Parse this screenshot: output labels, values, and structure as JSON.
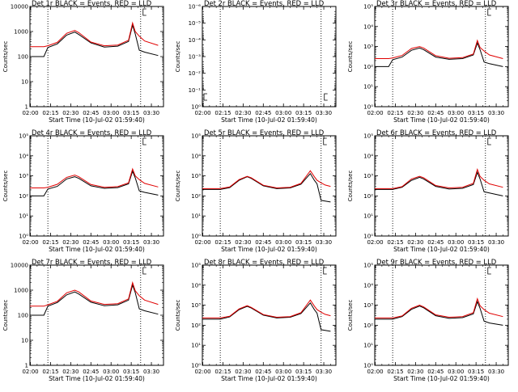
{
  "chart_data": [
    {
      "type": "line",
      "title": "Det 1r BLACK = Events, RED = LLD",
      "xlabel": "Start Time (10-Jul-02 01:59:40)",
      "ylabel": "Counts/sec",
      "x_ticks": [
        "02:00",
        "02:15",
        "02:30",
        "02:45",
        "03:00",
        "03:15",
        "03:30"
      ],
      "y_scale": "log",
      "ylim": [
        1,
        10000
      ],
      "y_ticks": [
        {
          "v": 1,
          "label": "1"
        },
        {
          "v": 10,
          "label": "10"
        },
        {
          "v": 100,
          "label": "100"
        },
        {
          "v": 1000,
          "label": "1000"
        },
        {
          "v": 10000,
          "label": "10000"
        }
      ],
      "vlines": [
        "02:13",
        "03:22"
      ],
      "series": [
        {
          "color": "#000000",
          "x": [
            "01:59",
            "02:10",
            "02:13",
            "02:20",
            "02:27",
            "02:33",
            "02:36",
            "02:45",
            "02:55",
            "03:05",
            "03:13",
            "03:16",
            "03:18",
            "03:21",
            "03:25",
            "03:35"
          ],
          "values": [
            100,
            100,
            230,
            320,
            720,
            950,
            760,
            350,
            240,
            260,
            400,
            1800,
            800,
            180,
            150,
            110
          ]
        },
        {
          "color": "#e00000",
          "x": [
            "01:59",
            "02:10",
            "02:13",
            "02:20",
            "02:27",
            "02:33",
            "02:36",
            "02:45",
            "02:55",
            "03:05",
            "03:13",
            "03:16",
            "03:18",
            "03:21",
            "03:25",
            "03:35"
          ],
          "values": [
            250,
            250,
            270,
            370,
            850,
            1100,
            900,
            380,
            270,
            290,
            450,
            2200,
            1000,
            650,
            420,
            280
          ]
        }
      ]
    },
    {
      "type": "line",
      "title": "Det 2r BLACK = Events, RED = LLD",
      "xlabel": "Start Time (10-Jul-02 01:59:40)",
      "ylabel": "Counts/sec",
      "x_ticks": [
        "02:00",
        "02:15",
        "02:30",
        "02:45",
        "03:00",
        "03:15",
        "03:30"
      ],
      "y_scale": "log",
      "ylim": [
        1,
        1e-06
      ],
      "y_ticks": [
        {
          "v": 1,
          "label": "10⁰"
        },
        {
          "v": 0.1,
          "label": "10⁻¹"
        },
        {
          "v": 0.01,
          "label": "10⁻²"
        },
        {
          "v": 0.001,
          "label": "10⁻³"
        },
        {
          "v": 0.0001,
          "label": "10⁻⁴"
        },
        {
          "v": 1e-05,
          "label": "10⁻⁵"
        },
        {
          "v": 1e-06,
          "label": "10⁻⁶"
        }
      ],
      "vlines": [
        "02:13",
        "03:28"
      ],
      "series": []
    },
    {
      "type": "line",
      "title": "Det 3r BLACK = Events, RED = LLD",
      "xlabel": "Start Time (10-Jul-02 01:59:40)",
      "ylabel": "Counts/sec",
      "x_ticks": [
        "02:00",
        "02:15",
        "02:30",
        "02:45",
        "03:00",
        "03:15",
        "03:30"
      ],
      "y_scale": "log",
      "ylim": [
        1,
        100000
      ],
      "y_ticks": [
        {
          "v": 1,
          "label": "10⁰"
        },
        {
          "v": 10,
          "label": "10¹"
        },
        {
          "v": 100,
          "label": "10²"
        },
        {
          "v": 1000,
          "label": "10³"
        },
        {
          "v": 10000,
          "label": "10⁴"
        },
        {
          "v": 100000,
          "label": "10⁵"
        }
      ],
      "vlines": [
        "02:13",
        "03:22"
      ],
      "series": [
        {
          "color": "#000000",
          "x": [
            "01:59",
            "02:10",
            "02:13",
            "02:20",
            "02:27",
            "02:33",
            "02:36",
            "02:45",
            "02:55",
            "03:05",
            "03:13",
            "03:16",
            "03:18",
            "03:21",
            "03:25",
            "03:35"
          ],
          "values": [
            100,
            100,
            220,
            300,
            650,
            850,
            700,
            300,
            230,
            250,
            380,
            1500,
            700,
            170,
            140,
            100
          ]
        },
        {
          "color": "#e00000",
          "x": [
            "01:59",
            "02:10",
            "02:13",
            "02:20",
            "02:27",
            "02:33",
            "02:36",
            "02:45",
            "02:55",
            "03:05",
            "03:13",
            "03:16",
            "03:18",
            "03:21",
            "03:25",
            "03:35"
          ],
          "values": [
            250,
            250,
            270,
            360,
            800,
            1000,
            850,
            350,
            260,
            280,
            420,
            2000,
            900,
            600,
            380,
            250
          ]
        }
      ]
    },
    {
      "type": "line",
      "title": "Det 4r BLACK = Events, RED = LLD",
      "xlabel": "Start Time (10-Jul-02 01:59:40)",
      "ylabel": "Counts/sec",
      "x_ticks": [
        "02:00",
        "02:15",
        "02:30",
        "02:45",
        "03:00",
        "03:15",
        "03:30"
      ],
      "y_scale": "log",
      "ylim": [
        1,
        100000
      ],
      "y_ticks": [
        {
          "v": 1,
          "label": "10⁰"
        },
        {
          "v": 10,
          "label": "10¹"
        },
        {
          "v": 100,
          "label": "10²"
        },
        {
          "v": 1000,
          "label": "10³"
        },
        {
          "v": 10000,
          "label": "10⁴"
        },
        {
          "v": 100000,
          "label": "10⁵"
        }
      ],
      "vlines": [
        "02:13",
        "03:22"
      ],
      "series": [
        {
          "color": "#000000",
          "x": [
            "01:59",
            "02:10",
            "02:13",
            "02:20",
            "02:27",
            "02:33",
            "02:36",
            "02:45",
            "02:55",
            "03:05",
            "03:13",
            "03:16",
            "03:18",
            "03:21",
            "03:25",
            "03:35"
          ],
          "values": [
            100,
            100,
            220,
            300,
            700,
            900,
            750,
            320,
            240,
            260,
            400,
            1700,
            800,
            180,
            150,
            110
          ]
        },
        {
          "color": "#e00000",
          "x": [
            "01:59",
            "02:10",
            "02:13",
            "02:20",
            "02:27",
            "02:33",
            "02:36",
            "02:45",
            "02:55",
            "03:05",
            "03:13",
            "03:16",
            "03:18",
            "03:21",
            "03:25",
            "03:35"
          ],
          "values": [
            250,
            250,
            270,
            380,
            850,
            1100,
            900,
            370,
            270,
            290,
            450,
            2200,
            1000,
            650,
            420,
            280
          ]
        }
      ]
    },
    {
      "type": "line",
      "title": "Det 5r BLACK = Events, RED = LLD",
      "xlabel": "Start Time (10-Jul-02 01:59:40)",
      "ylabel": "Counts/sec",
      "x_ticks": [
        "02:00",
        "02:15",
        "02:30",
        "02:45",
        "03:00",
        "03:15",
        "03:30"
      ],
      "y_scale": "log",
      "ylim": [
        1,
        100000
      ],
      "y_ticks": [
        {
          "v": 1,
          "label": "10⁰"
        },
        {
          "v": 10,
          "label": "10¹"
        },
        {
          "v": 100,
          "label": "10²"
        },
        {
          "v": 1000,
          "label": "10³"
        },
        {
          "v": 10000,
          "label": "10⁴"
        },
        {
          "v": 100000,
          "label": "10⁵"
        }
      ],
      "vlines": [
        "02:13",
        "03:28"
      ],
      "series": [
        {
          "color": "#000000",
          "x": [
            "01:59",
            "02:13",
            "02:20",
            "02:27",
            "02:33",
            "02:36",
            "02:45",
            "02:55",
            "03:05",
            "03:13",
            "03:20",
            "03:23",
            "03:25",
            "03:28",
            "03:31",
            "03:35"
          ],
          "values": [
            210,
            210,
            260,
            600,
            900,
            750,
            320,
            230,
            250,
            380,
            1300,
            600,
            400,
            60,
            55,
            50
          ]
        },
        {
          "color": "#e00000",
          "x": [
            "01:59",
            "02:13",
            "02:20",
            "02:27",
            "02:33",
            "02:36",
            "02:45",
            "02:55",
            "03:05",
            "03:13",
            "03:20",
            "03:23",
            "03:25",
            "03:28",
            "03:31",
            "03:35"
          ],
          "values": [
            230,
            230,
            280,
            650,
            950,
            800,
            340,
            250,
            270,
            420,
            1800,
            900,
            600,
            450,
            350,
            300
          ]
        }
      ]
    },
    {
      "type": "line",
      "title": "Det 6r BLACK = Events, RED = LLD",
      "xlabel": "Start Time (10-Jul-02 01:59:40)",
      "ylabel": "Counts/sec",
      "x_ticks": [
        "02:00",
        "02:15",
        "02:30",
        "02:45",
        "03:00",
        "03:15",
        "03:30"
      ],
      "y_scale": "log",
      "ylim": [
        1,
        100000
      ],
      "y_ticks": [
        {
          "v": 1,
          "label": "10⁰"
        },
        {
          "v": 10,
          "label": "10¹"
        },
        {
          "v": 100,
          "label": "10²"
        },
        {
          "v": 1000,
          "label": "10³"
        },
        {
          "v": 10000,
          "label": "10⁴"
        },
        {
          "v": 100000,
          "label": "10⁵"
        }
      ],
      "vlines": [
        "02:13",
        "03:22"
      ],
      "series": [
        {
          "color": "#000000",
          "x": [
            "01:59",
            "02:13",
            "02:20",
            "02:27",
            "02:33",
            "02:36",
            "02:45",
            "02:55",
            "03:05",
            "03:13",
            "03:16",
            "03:18",
            "03:21",
            "03:25",
            "03:35"
          ],
          "values": [
            210,
            210,
            270,
            600,
            850,
            700,
            300,
            220,
            240,
            370,
            1500,
            700,
            160,
            140,
            100
          ]
        },
        {
          "color": "#e00000",
          "x": [
            "01:59",
            "02:13",
            "02:20",
            "02:27",
            "02:33",
            "02:36",
            "02:45",
            "02:55",
            "03:05",
            "03:13",
            "03:16",
            "03:18",
            "03:21",
            "03:25",
            "03:35"
          ],
          "values": [
            230,
            230,
            290,
            700,
            950,
            800,
            330,
            250,
            270,
            420,
            2100,
            950,
            600,
            400,
            270
          ]
        }
      ]
    },
    {
      "type": "line",
      "title": "Det 7r BLACK = Events, RED = LLD",
      "xlabel": "Start Time (10-Jul-02 01:59:40)",
      "ylabel": "Counts/sec",
      "x_ticks": [
        "02:00",
        "02:15",
        "02:30",
        "02:45",
        "03:00",
        "03:15",
        "03:30"
      ],
      "y_scale": "log",
      "ylim": [
        1,
        10000
      ],
      "y_ticks": [
        {
          "v": 1,
          "label": "1"
        },
        {
          "v": 10,
          "label": "10"
        },
        {
          "v": 100,
          "label": "100"
        },
        {
          "v": 1000,
          "label": "1000"
        },
        {
          "v": 10000,
          "label": "10000"
        }
      ],
      "vlines": [
        "02:13",
        "03:22"
      ],
      "series": [
        {
          "color": "#000000",
          "x": [
            "01:59",
            "02:10",
            "02:13",
            "02:20",
            "02:27",
            "02:33",
            "02:36",
            "02:45",
            "02:55",
            "03:05",
            "03:13",
            "03:16",
            "03:18",
            "03:21",
            "03:25",
            "03:35"
          ],
          "values": [
            100,
            100,
            230,
            320,
            650,
            850,
            700,
            330,
            240,
            260,
            400,
            1600,
            800,
            180,
            150,
            110
          ]
        },
        {
          "color": "#e00000",
          "x": [
            "01:59",
            "02:10",
            "02:13",
            "02:20",
            "02:27",
            "02:33",
            "02:36",
            "02:45",
            "02:55",
            "03:05",
            "03:13",
            "03:16",
            "03:18",
            "03:21",
            "03:25",
            "03:35"
          ],
          "values": [
            230,
            230,
            260,
            360,
            780,
            1000,
            850,
            370,
            270,
            290,
            450,
            2000,
            950,
            600,
            400,
            270
          ]
        }
      ]
    },
    {
      "type": "line",
      "title": "Det 8r BLACK = Events, RED = LLD",
      "xlabel": "Start Time (10-Jul-02 01:59:40)",
      "ylabel": "Counts/sec",
      "x_ticks": [
        "02:00",
        "02:15",
        "02:30",
        "02:45",
        "03:00",
        "03:15",
        "03:30"
      ],
      "y_scale": "log",
      "ylim": [
        1,
        100000
      ],
      "y_ticks": [
        {
          "v": 1,
          "label": "10⁰"
        },
        {
          "v": 10,
          "label": "10¹"
        },
        {
          "v": 100,
          "label": "10²"
        },
        {
          "v": 1000,
          "label": "10³"
        },
        {
          "v": 10000,
          "label": "10⁴"
        },
        {
          "v": 100000,
          "label": "10⁵"
        }
      ],
      "vlines": [
        "02:13",
        "03:28"
      ],
      "series": [
        {
          "color": "#000000",
          "x": [
            "01:59",
            "02:13",
            "02:20",
            "02:27",
            "02:33",
            "02:36",
            "02:45",
            "02:55",
            "03:05",
            "03:13",
            "03:20",
            "03:23",
            "03:25",
            "03:28",
            "03:31",
            "03:35"
          ],
          "values": [
            200,
            200,
            260,
            600,
            880,
            720,
            320,
            230,
            250,
            380,
            1300,
            600,
            400,
            60,
            55,
            50
          ]
        },
        {
          "color": "#e00000",
          "x": [
            "01:59",
            "02:13",
            "02:20",
            "02:27",
            "02:33",
            "02:36",
            "02:45",
            "02:55",
            "03:05",
            "03:13",
            "03:20",
            "03:23",
            "03:25",
            "03:28",
            "03:31",
            "03:35"
          ],
          "values": [
            230,
            230,
            280,
            650,
            950,
            780,
            340,
            250,
            270,
            420,
            1800,
            900,
            600,
            450,
            350,
            300
          ]
        }
      ]
    },
    {
      "type": "line",
      "title": "Det 9r BLACK = Events, RED = LLD",
      "xlabel": "Start Time (10-Jul-02 01:59:40)",
      "ylabel": "Counts/sec",
      "x_ticks": [
        "02:00",
        "02:15",
        "02:30",
        "02:45",
        "03:00",
        "03:15",
        "03:30"
      ],
      "y_scale": "log",
      "ylim": [
        1,
        100000
      ],
      "y_ticks": [
        {
          "v": 1,
          "label": "10⁰"
        },
        {
          "v": 10,
          "label": "10¹"
        },
        {
          "v": 100,
          "label": "10²"
        },
        {
          "v": 1000,
          "label": "10³"
        },
        {
          "v": 10000,
          "label": "10⁴"
        },
        {
          "v": 100000,
          "label": "10⁵"
        }
      ],
      "vlines": [
        "02:13",
        "03:22"
      ],
      "series": [
        {
          "color": "#000000",
          "x": [
            "01:59",
            "02:13",
            "02:20",
            "02:27",
            "02:33",
            "02:36",
            "02:45",
            "02:55",
            "03:05",
            "03:13",
            "03:16",
            "03:18",
            "03:21",
            "03:25",
            "03:35"
          ],
          "values": [
            200,
            200,
            270,
            620,
            900,
            740,
            300,
            220,
            240,
            370,
            1500,
            700,
            160,
            130,
            100
          ]
        },
        {
          "color": "#e00000",
          "x": [
            "01:59",
            "02:13",
            "02:20",
            "02:27",
            "02:33",
            "02:36",
            "02:45",
            "02:55",
            "03:05",
            "03:13",
            "03:16",
            "03:18",
            "03:21",
            "03:25",
            "03:35"
          ],
          "values": [
            230,
            230,
            290,
            700,
            1000,
            820,
            330,
            250,
            270,
            420,
            2100,
            950,
            600,
            400,
            270
          ]
        }
      ]
    }
  ]
}
